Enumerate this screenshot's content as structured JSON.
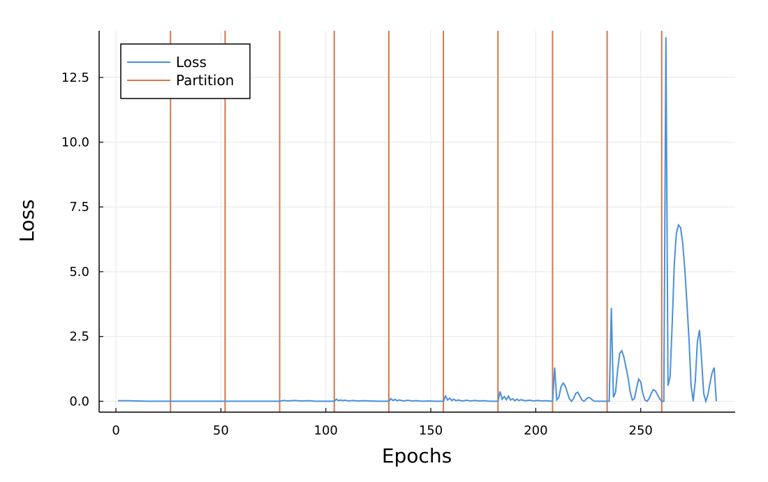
{
  "chart_data": {
    "type": "line",
    "xlabel": "Epochs",
    "ylabel": "Loss",
    "xlim": [
      -8,
      295
    ],
    "ylim": [
      -0.42,
      14.3
    ],
    "xticks": [
      0,
      50,
      100,
      150,
      200,
      250
    ],
    "xtick_labels": [
      "0",
      "50",
      "100",
      "150",
      "200",
      "250"
    ],
    "yticks": [
      0,
      2.5,
      5,
      7.5,
      10,
      12.5
    ],
    "ytick_labels": [
      "0.0",
      "2.5",
      "5.0",
      "7.5",
      "10.0",
      "12.5"
    ],
    "grid": true,
    "legend_position": "top-left",
    "series": [
      {
        "name": "Loss",
        "kind": "line",
        "color": "#4a90d9",
        "x": [
          1,
          5,
          10,
          15,
          20,
          25,
          30,
          40,
          50,
          52,
          60,
          70,
          78,
          80,
          82,
          85,
          88,
          92,
          95,
          100,
          104,
          105,
          106,
          107,
          108,
          109,
          111,
          113,
          115,
          118,
          121,
          125,
          130,
          131,
          132,
          133,
          134,
          135,
          137,
          139,
          141,
          143,
          146,
          149,
          152,
          156,
          157,
          158,
          159,
          160,
          161,
          162,
          163,
          165,
          167,
          169,
          171,
          173,
          175,
          178,
          182,
          183,
          184,
          185,
          186,
          187,
          188,
          189,
          190,
          191,
          192,
          193,
          195,
          197,
          199,
          201,
          203,
          205,
          208,
          209,
          210,
          211,
          212,
          213,
          214,
          215,
          216,
          217,
          218,
          219,
          220,
          221,
          222,
          223,
          224,
          225,
          226,
          227,
          228,
          229,
          230,
          231,
          232,
          233,
          234,
          235,
          236,
          237,
          238,
          239,
          240,
          241,
          242,
          243,
          244,
          245,
          246,
          247,
          248,
          249,
          250,
          251,
          252,
          253,
          254,
          255,
          256,
          257,
          258,
          259,
          260,
          261,
          262,
          263,
          264,
          265,
          266,
          267,
          268,
          269,
          270,
          271,
          272,
          273,
          274,
          275,
          276,
          277,
          278,
          279,
          280,
          281,
          282,
          283,
          284,
          285,
          286
        ],
        "y": [
          0.02,
          0.02,
          0.01,
          0.0,
          0.0,
          0.0,
          0.0,
          0.0,
          0.0,
          0.0,
          0.0,
          0.0,
          0.0,
          0.03,
          0.01,
          0.03,
          0.01,
          0.02,
          0.0,
          0.0,
          0.0,
          0.08,
          0.02,
          0.05,
          0.02,
          0.04,
          0.01,
          0.03,
          0.01,
          0.02,
          0.01,
          0.0,
          0.0,
          0.1,
          0.03,
          0.07,
          0.02,
          0.05,
          0.01,
          0.04,
          0.01,
          0.02,
          0.0,
          0.01,
          0.0,
          0.0,
          0.2,
          0.05,
          0.12,
          0.03,
          0.08,
          0.02,
          0.05,
          0.01,
          0.04,
          0.01,
          0.03,
          0.01,
          0.02,
          0.0,
          0.0,
          0.38,
          0.08,
          0.18,
          0.06,
          0.2,
          0.05,
          0.1,
          0.02,
          0.08,
          0.03,
          0.06,
          0.02,
          0.04,
          0.01,
          0.03,
          0.01,
          0.02,
          0.0,
          1.3,
          0.05,
          0.15,
          0.55,
          0.7,
          0.6,
          0.35,
          0.1,
          0.0,
          0.1,
          0.3,
          0.35,
          0.2,
          0.05,
          0.0,
          0.08,
          0.15,
          0.12,
          0.05,
          0.0,
          0.0,
          0.0,
          0.0,
          0.0,
          0.0,
          0.0,
          0.0,
          3.6,
          0.15,
          0.35,
          1.2,
          1.85,
          1.95,
          1.7,
          1.3,
          0.9,
          0.35,
          0.05,
          0.1,
          0.5,
          0.85,
          0.75,
          0.3,
          0.05,
          0.0,
          0.1,
          0.3,
          0.45,
          0.4,
          0.25,
          0.1,
          0.0,
          0.0,
          14.05,
          0.6,
          0.95,
          3.0,
          5.3,
          6.5,
          6.8,
          6.7,
          6.1,
          5.1,
          3.8,
          2.4,
          0.6,
          0.0,
          0.8,
          2.3,
          2.75,
          1.6,
          0.3,
          0.0,
          0.25,
          0.7,
          1.1,
          1.3,
          0.0
        ]
      },
      {
        "name": "Partition",
        "kind": "vline",
        "color": "#d4774e",
        "x": [
          26,
          52,
          78,
          104,
          130,
          156,
          182,
          208,
          234,
          260
        ]
      }
    ]
  }
}
